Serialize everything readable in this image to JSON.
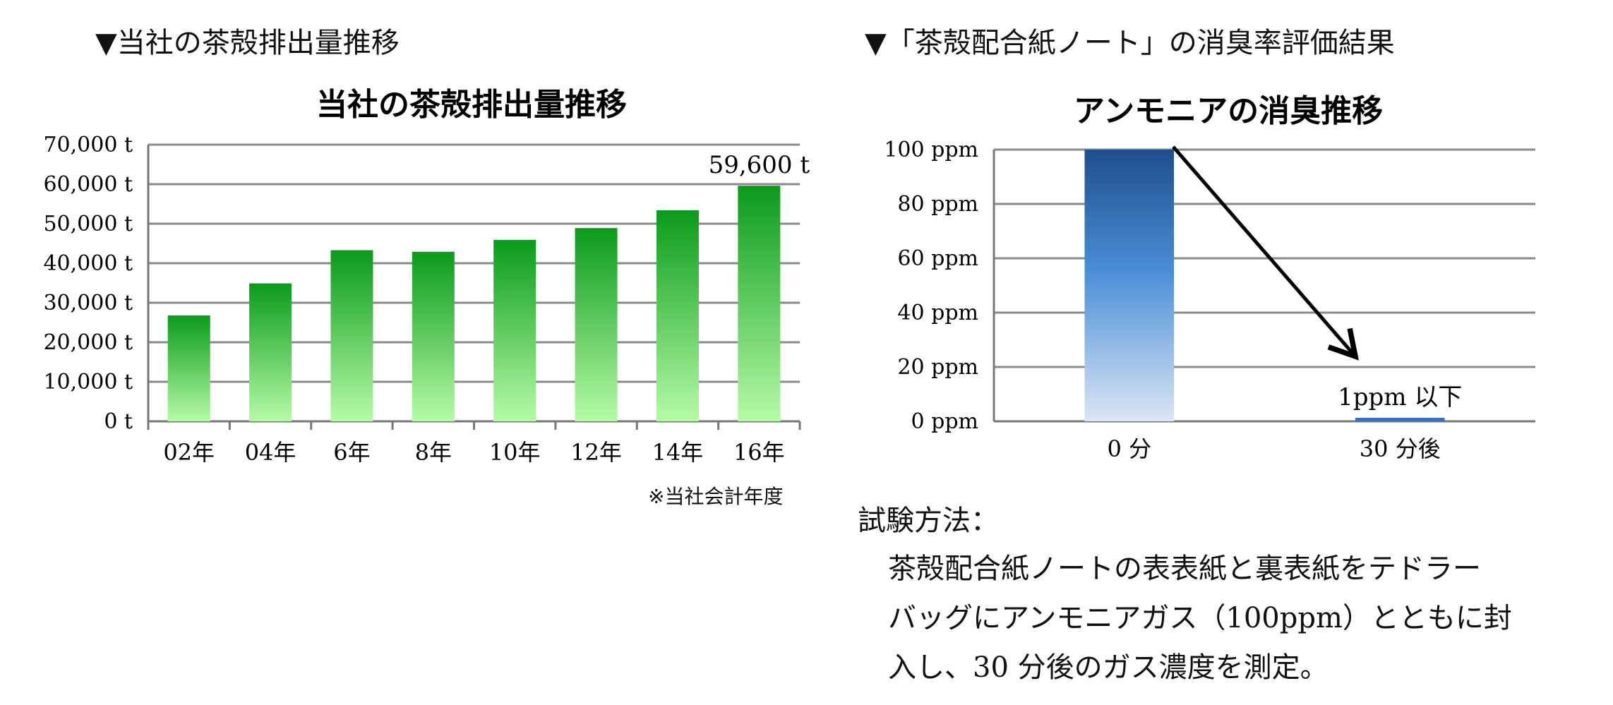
{
  "left_section": {
    "heading": "▼当社の茶殻排出量推移",
    "footnote": "※当社会計年度"
  },
  "right_section": {
    "heading": "▼「茶殻配合紙ノート」の消臭率評価結果",
    "method_label": "試験方法：",
    "method_lines": [
      "茶殻配合紙ノートの表表紙と裏表紙をテドラー",
      "バッグにアンモニアガス（100ppm）とともに封",
      "入し、30 分後のガス濃度を測定。"
    ]
  },
  "chart_data": [
    {
      "type": "bar",
      "title": "当社の茶殻排出量推移",
      "categories": [
        "02年",
        "04年",
        "6年",
        "8年",
        "10年",
        "12年",
        "14年",
        "16年"
      ],
      "values": [
        26800,
        34900,
        43300,
        42900,
        45900,
        48900,
        53400,
        59600
      ],
      "ylim": [
        0,
        70000
      ],
      "yticks": [
        "0 t",
        "10,000 t",
        "20,000 t",
        "30,000 t",
        "40,000 t",
        "50,000 t",
        "60,000 t",
        "70,000 t"
      ],
      "data_labels": [
        {
          "category": "16年",
          "text": "59,600 t"
        }
      ],
      "grid": true,
      "colors": {
        "bar_top": "#0a9b1b",
        "bar_bottom": "#b6fba6"
      }
    },
    {
      "type": "bar",
      "title": "アンモニアの消臭推移",
      "categories": [
        "0 分",
        "30 分後"
      ],
      "values": [
        100,
        1
      ],
      "ylim": [
        0,
        100
      ],
      "yticks": [
        "0 ppm",
        "20 ppm",
        "40 ppm",
        "60 ppm",
        "80 ppm",
        "100 ppm"
      ],
      "data_labels": [
        {
          "category": "30 分後",
          "text": "1ppm 以下"
        }
      ],
      "annotation": "arrow from top of 0 分 bar down toward 30 分後 bar",
      "grid": true,
      "colors": {
        "bar_top": "#1f4e8c",
        "bar_mid": "#4a8fd6",
        "bar_bottom": "#dbe6f4"
      }
    }
  ]
}
